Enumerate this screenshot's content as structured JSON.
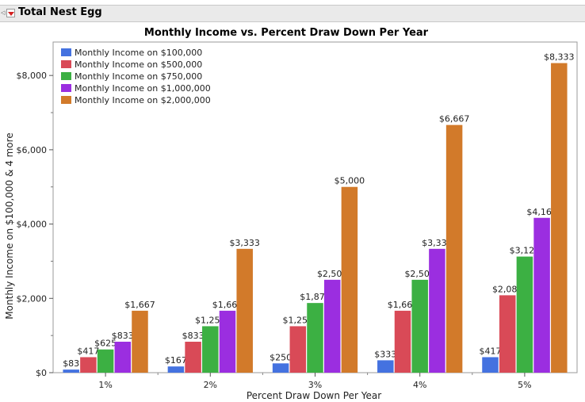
{
  "outline": {
    "title": "Total Nest Egg",
    "disclosure_icon": "red-triangle-menu-icon"
  },
  "chart_data": {
    "type": "bar",
    "title": "Monthly Income vs. Percent Draw Down Per Year",
    "xlabel": "Percent Draw Down Per Year",
    "ylabel": "Monthly Income on $100,000 & 4 more",
    "categories": [
      "1%",
      "2%",
      "3%",
      "4%",
      "5%"
    ],
    "ylim": [
      0,
      8900
    ],
    "yticks": [
      0,
      2000,
      4000,
      6000,
      8000
    ],
    "ytick_labels": [
      "$0",
      "$2,000",
      "$4,000",
      "$6,000",
      "$8,000"
    ],
    "legend_position": "top-left",
    "grid": false,
    "series": [
      {
        "name": "Monthly Income on $100,000",
        "color": "#4472e0",
        "values": [
          83,
          167,
          250,
          333,
          417
        ],
        "labels": [
          "$83",
          "$167",
          "$250",
          "$333",
          "$417"
        ]
      },
      {
        "name": "Monthly Income on $500,000",
        "color": "#d94a57",
        "values": [
          417,
          833,
          1250,
          1667,
          2083
        ],
        "labels": [
          "$417",
          "$833",
          "$1,250",
          "$1,667",
          "$2,083"
        ]
      },
      {
        "name": "Monthly Income on $750,000",
        "color": "#3cb043",
        "values": [
          625,
          1250,
          1875,
          2500,
          3125
        ],
        "labels": [
          "$625",
          "$1,250",
          "$1,875",
          "$2,500",
          "$3,125"
        ]
      },
      {
        "name": "Monthly Income on $1,000,000",
        "color": "#9b2ee0",
        "values": [
          833,
          1667,
          2500,
          3333,
          4167
        ],
        "labels": [
          "$833",
          "$1,667",
          "$2,500",
          "$3,333",
          "$4,167"
        ]
      },
      {
        "name": "Monthly Income on $2,000,000",
        "color": "#d27a2a",
        "values": [
          1667,
          3333,
          5000,
          6667,
          8333
        ],
        "labels": [
          "$1,667",
          "$3,333",
          "$5,000",
          "$6,667",
          "$8,333"
        ]
      }
    ]
  }
}
